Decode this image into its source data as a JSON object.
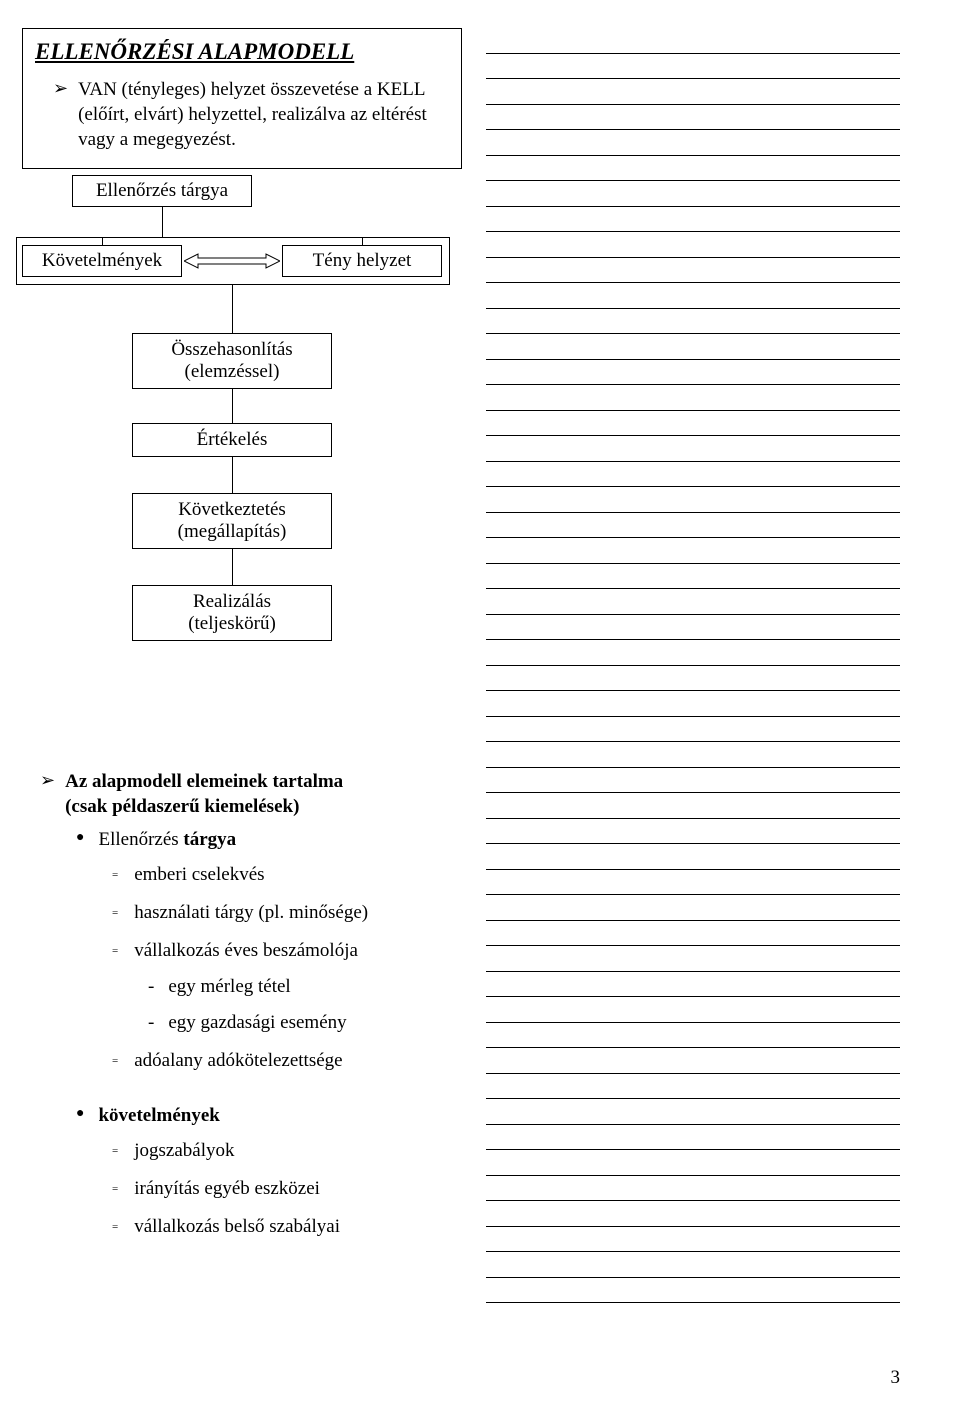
{
  "title": "ELLENŐRZÉSI ALAPMODELL",
  "intro_bullet": "VAN (tényleges) helyzet összevetése a KELL (előírt, elvárt) helyzettel, realizálva az eltérést vagy a megegyezést.",
  "flow": {
    "targya": "Ellenőrzés tárgya",
    "kovetelmenyek": "Követelmények",
    "teny": "Tény helyzet",
    "osszehasonlitas_l1": "Összehasonlítás",
    "osszehasonlitas_l2": "(elemzéssel)",
    "ertekeles": "Értékelés",
    "kovetkeztetes_l1": "Következtetés",
    "kovetkeztetes_l2": "(megállapítás)",
    "realizalas_l1": "Realizálás",
    "realizalas_l2": "(teljeskörű)"
  },
  "section2_title_l1": "Az alapmodell elemeinek tartalma",
  "section2_title_l2": "(csak példaszerű kiemelések)",
  "group1": {
    "head": "Ellenőrzés",
    "head_bold": "tárgya",
    "i1": "emberi cselekvés",
    "i2": "használati tárgy (pl. minősége)",
    "i3": "vállalkozás éves beszámolója",
    "i3a": "egy mérleg tétel",
    "i3b": "egy gazdasági esemény",
    "i4": "adóalany adókötelezettsége"
  },
  "group2": {
    "head": "követelmények",
    "i1": "jogszabályok",
    "i2": "irányítás egyéb eszközei",
    "i3": "vállalkozás belső szabályai"
  },
  "page_number": "3",
  "note_line_count": 50
}
